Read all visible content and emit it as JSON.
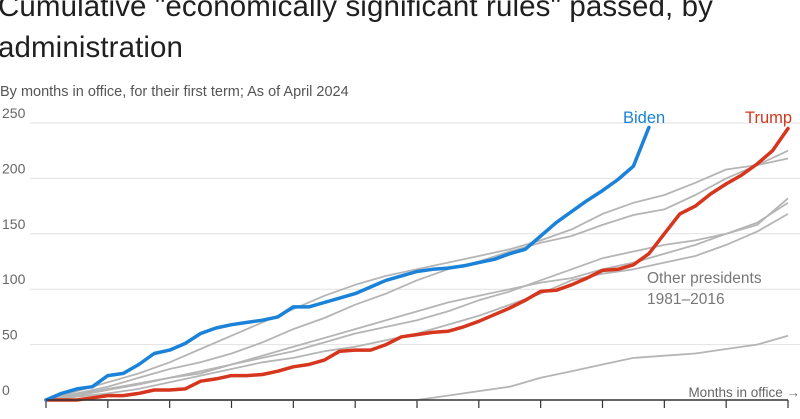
{
  "title": "Cumulative \"economically significant rules\" passed, by administration",
  "subtitle": "By months in office, for their first term; As of April 2024",
  "chart_data": {
    "type": "line",
    "xlabel": "Months in office →",
    "ylabel": "",
    "ylim": [
      0,
      250
    ],
    "xlim": [
      0,
      48
    ],
    "yticks": [
      "0",
      "50",
      "100",
      "150",
      "200",
      "250"
    ],
    "grid": true,
    "annotation": "Other presidents 1981–2016",
    "colors": {
      "biden": "#1a82d8",
      "trump": "#d5361d",
      "other": "#b5b5b5"
    },
    "series": [
      {
        "name": "Biden",
        "key": "biden",
        "x": [
          0,
          1,
          2,
          3,
          4,
          5,
          6,
          7,
          8,
          9,
          10,
          11,
          12,
          13,
          14,
          15,
          16,
          17,
          18,
          19,
          20,
          21,
          22,
          23,
          24,
          25,
          26,
          27,
          28,
          29,
          30,
          31,
          32,
          33,
          34,
          35,
          36,
          37,
          38,
          39
        ],
        "values": [
          0,
          6,
          10,
          12,
          22,
          24,
          32,
          42,
          45,
          51,
          60,
          65,
          68,
          70,
          72,
          75,
          84,
          84,
          88,
          92,
          96,
          102,
          108,
          112,
          116,
          118,
          119,
          121,
          124,
          127,
          132,
          136,
          148,
          160,
          170,
          180,
          189,
          199,
          211,
          246
        ]
      },
      {
        "name": "Trump",
        "key": "trump",
        "x": [
          0,
          1,
          2,
          3,
          4,
          5,
          6,
          7,
          8,
          9,
          10,
          11,
          12,
          13,
          14,
          15,
          16,
          17,
          18,
          19,
          20,
          21,
          22,
          23,
          24,
          25,
          26,
          27,
          28,
          29,
          30,
          31,
          32,
          33,
          34,
          35,
          36,
          37,
          38,
          39,
          40,
          41,
          42,
          43,
          44,
          45,
          46,
          47,
          48
        ],
        "values": [
          0,
          0,
          0,
          2,
          4,
          4,
          6,
          9,
          9,
          10,
          17,
          19,
          22,
          22,
          23,
          26,
          30,
          32,
          36,
          44,
          45,
          45,
          50,
          57,
          59,
          61,
          62,
          66,
          71,
          77,
          83,
          90,
          98,
          99,
          104,
          110,
          117,
          118,
          122,
          132,
          150,
          168,
          175,
          186,
          195,
          203,
          213,
          225,
          245
        ]
      },
      {
        "key": "other",
        "x": [
          0,
          2,
          4,
          6,
          8,
          10,
          12,
          14,
          16,
          18,
          20,
          22,
          24,
          26,
          28,
          30,
          32,
          34,
          36,
          38,
          40,
          42,
          44,
          46,
          48
        ],
        "values": [
          0,
          6,
          12,
          20,
          28,
          34,
          42,
          52,
          64,
          74,
          86,
          96,
          108,
          118,
          125,
          134,
          142,
          148,
          158,
          167,
          172,
          185,
          200,
          212,
          225
        ]
      },
      {
        "key": "other",
        "x": [
          0,
          2,
          4,
          6,
          8,
          10,
          12,
          14,
          16,
          18,
          20,
          22,
          24,
          26,
          28,
          30,
          32,
          34,
          36,
          38,
          40,
          42,
          44,
          46,
          48
        ],
        "values": [
          0,
          5,
          10,
          15,
          20,
          24,
          32,
          40,
          48,
          56,
          64,
          72,
          80,
          88,
          94,
          100,
          106,
          110,
          118,
          124,
          132,
          140,
          150,
          160,
          178
        ]
      },
      {
        "key": "other",
        "x": [
          0,
          2,
          4,
          6,
          8,
          10,
          12,
          14,
          16,
          18,
          20,
          22,
          24,
          26,
          28,
          30,
          32,
          34,
          36,
          38,
          40,
          42,
          44,
          46,
          48
        ],
        "values": [
          0,
          3,
          6,
          10,
          16,
          22,
          28,
          34,
          38,
          44,
          48,
          54,
          60,
          68,
          76,
          86,
          96,
          108,
          114,
          118,
          124,
          130,
          140,
          152,
          168
        ]
      },
      {
        "key": "other",
        "x": [
          0,
          2,
          4,
          6,
          8,
          10,
          12,
          14,
          16,
          18,
          20,
          22,
          24,
          26,
          28,
          30,
          32,
          34,
          36,
          38,
          40,
          42,
          44,
          46,
          48
        ],
        "values": [
          0,
          8,
          16,
          24,
          34,
          46,
          58,
          70,
          82,
          94,
          104,
          112,
          118,
          124,
          130,
          136,
          144,
          154,
          168,
          178,
          185,
          196,
          208,
          212,
          218
        ]
      },
      {
        "key": "other",
        "x": [
          0,
          2,
          4,
          6,
          8,
          10,
          12,
          14,
          16,
          18,
          20,
          22,
          24,
          26,
          28,
          30,
          32,
          34,
          36,
          38,
          40,
          42,
          44,
          46,
          48
        ],
        "values": [
          0,
          4,
          9,
          14,
          20,
          26,
          32,
          38,
          44,
          52,
          60,
          66,
          72,
          80,
          90,
          98,
          108,
          118,
          128,
          134,
          140,
          144,
          150,
          158,
          182
        ]
      },
      {
        "key": "other",
        "x": [
          0,
          2,
          4,
          6,
          8,
          10,
          12,
          14,
          16,
          18,
          20,
          22,
          24,
          26,
          28,
          30,
          32,
          34,
          36,
          38,
          40,
          42,
          44,
          46,
          48
        ],
        "values": [
          0,
          0,
          0,
          0,
          0,
          0,
          0,
          0,
          0,
          0,
          0,
          0,
          0,
          4,
          8,
          12,
          20,
          26,
          32,
          38,
          40,
          42,
          46,
          50,
          58
        ]
      }
    ]
  }
}
